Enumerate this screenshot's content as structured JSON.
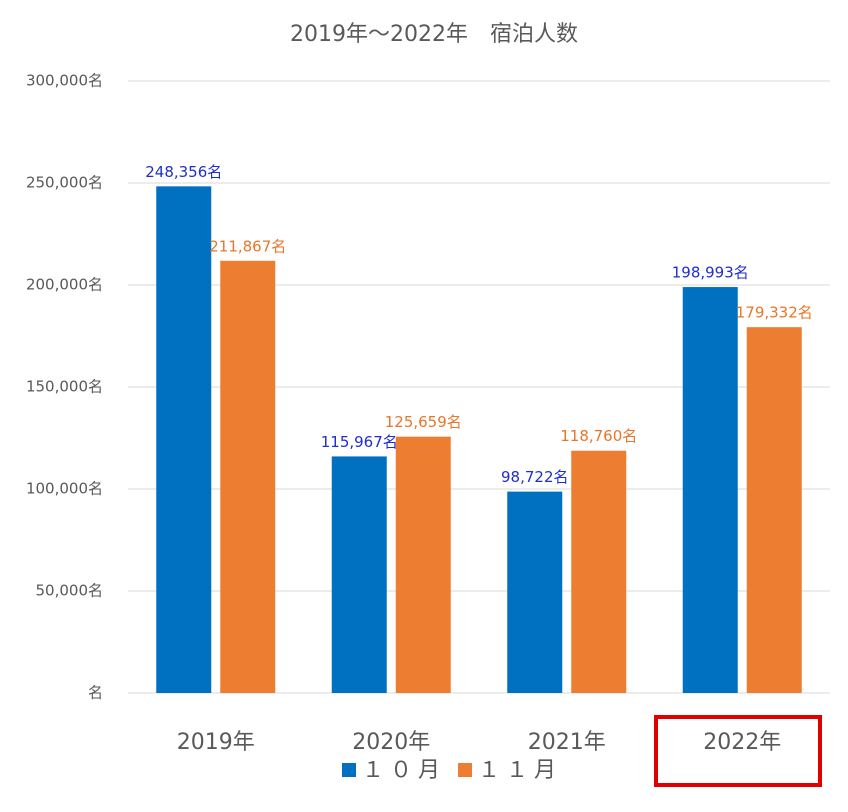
{
  "chart_data": {
    "type": "bar",
    "title": "2019年～2022年　宿泊人数",
    "categories": [
      "2019年",
      "2020年",
      "2021年",
      "2022年"
    ],
    "series": [
      {
        "name": "１０月",
        "color": "#0070c0",
        "label_color": "#1f2ed1",
        "values": [
          248356,
          115967,
          98722,
          198993
        ],
        "value_labels": [
          "248,356名",
          "115,967名",
          "98,722名",
          "198,993名"
        ]
      },
      {
        "name": "１１月",
        "color": "#ed7d31",
        "label_color": "#e8762a",
        "values": [
          211867,
          125659,
          118760,
          179332
        ],
        "value_labels": [
          "211,867名",
          "125,659名",
          "118,760名",
          "179,332名"
        ]
      }
    ],
    "ylim": [
      0,
      300000
    ],
    "yticks": [
      {
        "value": 0,
        "label": "名"
      },
      {
        "value": 50000,
        "label": "50,000名"
      },
      {
        "value": 100000,
        "label": "100,000名"
      },
      {
        "value": 150000,
        "label": "150,000名"
      },
      {
        "value": 200000,
        "label": "200,000名"
      },
      {
        "value": 250000,
        "label": "250,000名"
      },
      {
        "value": 300000,
        "label": "300,000名"
      }
    ],
    "grid": true,
    "legend": "bottom"
  }
}
